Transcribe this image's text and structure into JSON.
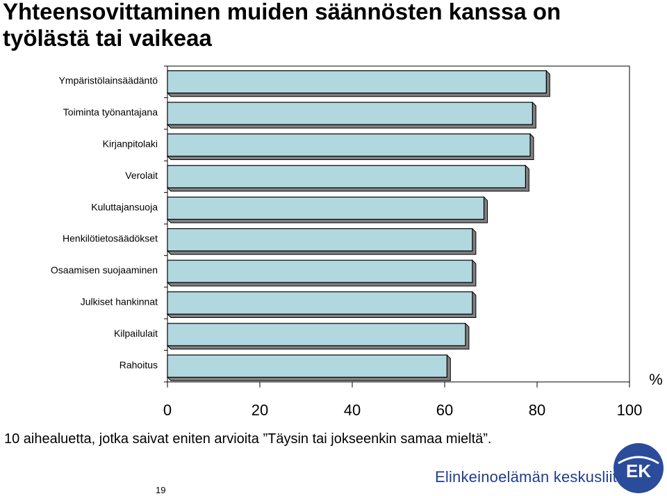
{
  "slide": {
    "title_line1": "Yhteensovittaminen muiden säännösten kanssa on",
    "title_line2": "työlästä tai vaikeaa",
    "footnote": "10 aihealuetta, jotka saivat eniten arvioita ”Täysin tai jokseenkin samaa mieltä”.",
    "page_number": "19",
    "brand_name": "Elinkeinoelämän keskusliitto",
    "logo_text": "EK"
  },
  "colors": {
    "bar_fill": "#b2d8df",
    "bar_stroke": "#000000",
    "shadow": "#808080",
    "brand_blue": "#1f3d8a",
    "logo_fill": "#2b4b9b"
  },
  "chart_data": {
    "type": "bar",
    "orientation": "horizontal",
    "title": "",
    "xlabel": "%",
    "ylabel": "",
    "categories": [
      "Ympäristölainsäädäntö",
      "Toiminta työnantajana",
      "Kirjanpitolaki",
      "Verolait",
      "Kuluttajansuoja",
      "Henkilötietosäädökset",
      "Osaamisen suojaaminen",
      "Julkiset hankinnat",
      "Kilpailulait",
      "Rahoitus"
    ],
    "values": [
      82,
      79,
      78.5,
      77.5,
      68.5,
      66,
      66,
      66,
      64.5,
      60.5
    ],
    "xlim": [
      0,
      100
    ],
    "xticks": [
      "0",
      "20",
      "40",
      "60",
      "80",
      "100"
    ],
    "grid": false,
    "legend": "none"
  }
}
